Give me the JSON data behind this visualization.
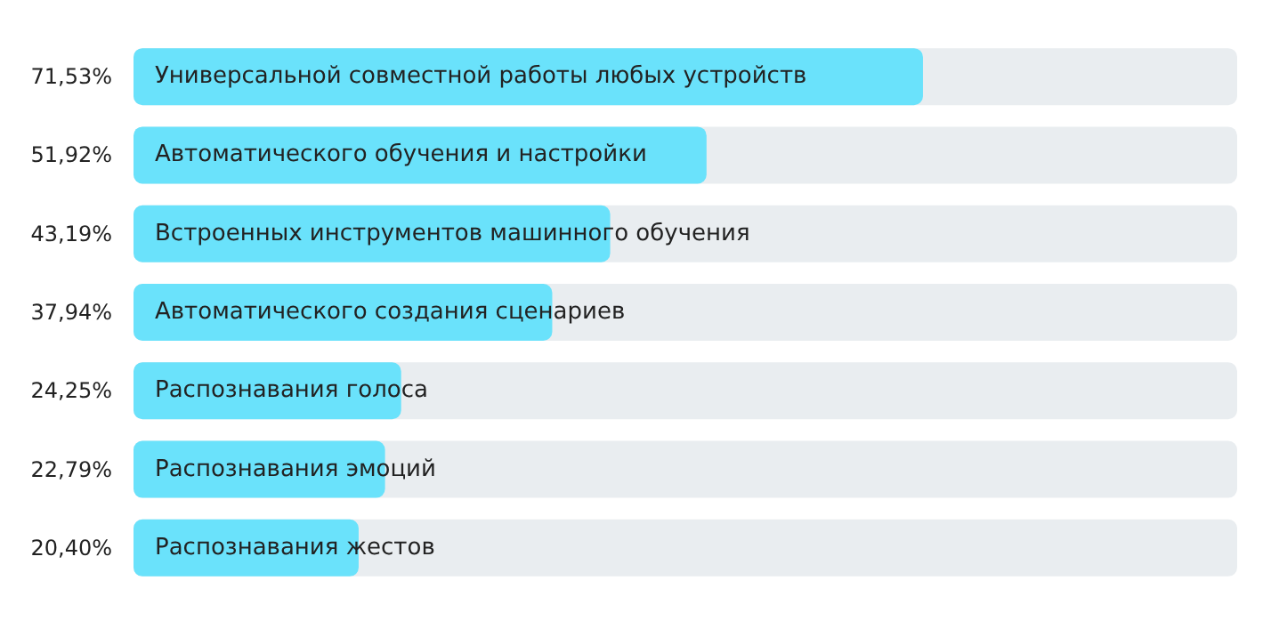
{
  "chart_data": {
    "type": "bar",
    "orientation": "horizontal",
    "categories": [
      "Универсальной совместной работы любых устройств",
      "Автоматического обучения и настройки",
      "Встроенных инструментов машинного обучения",
      "Автоматического создания сценариев",
      "Распознавания голоса",
      "Распознавания эмоций",
      "Распознавания жестов"
    ],
    "values": [
      71.53,
      51.92,
      43.19,
      37.94,
      24.25,
      22.79,
      20.4
    ],
    "value_labels": [
      "71,53%",
      "51,92%",
      "43,19%",
      "37,94%",
      "24,25%",
      "22,79%",
      "20,40%"
    ],
    "color": "#6ae2fb",
    "xlim": [
      0,
      100
    ],
    "tick_labels": "y",
    "grid": false
  }
}
